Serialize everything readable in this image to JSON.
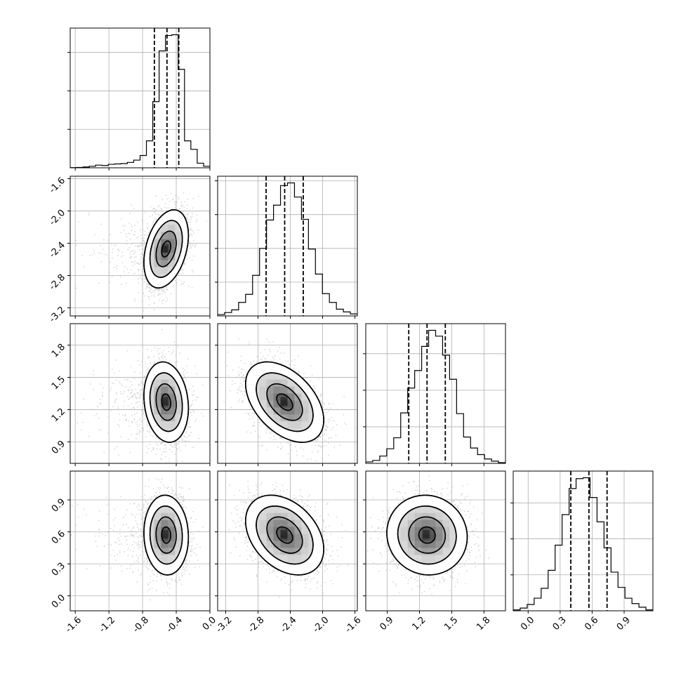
{
  "chart_data": {
    "type": "corner",
    "grid": true,
    "params": [
      {
        "range": [
          -1.66,
          0.0
        ],
        "ticks": [
          "-1.6",
          "-1.2",
          "-0.8",
          "-0.4",
          "0.0"
        ],
        "tick_values": [
          -1.6,
          -1.2,
          -0.8,
          -0.4,
          0.0
        ],
        "quantiles": [
          -0.66,
          -0.51,
          -0.37
        ],
        "hist": [
          0.2,
          0.5,
          1,
          2,
          3.5,
          3,
          4.5,
          5,
          5.5,
          7,
          10,
          16,
          35,
          86,
          152,
          172,
          173,
          128,
          35,
          24,
          6,
          2
        ],
        "mean": -0.52,
        "sd": 0.12
      },
      {
        "range": [
          -3.3,
          -1.57
        ],
        "ticks": [
          "-3.2",
          "-2.8",
          "-2.4",
          "-2.0",
          "-1.6"
        ],
        "tick_values": [
          -3.2,
          -2.8,
          -2.4,
          -2.0,
          -1.6
        ],
        "quantiles": [
          -2.7,
          -2.47,
          -2.24
        ],
        "hist": [
          2,
          5,
          9,
          20,
          32,
          60,
          100,
          142,
          164,
          193,
          197,
          176,
          143,
          99,
          62,
          33,
          20,
          10,
          6,
          3
        ],
        "mean": -2.47,
        "sd": 0.22
      },
      {
        "range": [
          0.7,
          2.0
        ],
        "ticks": [
          "0.9",
          "1.2",
          "1.5",
          "1.8"
        ],
        "tick_values": [
          0.9,
          1.2,
          1.5,
          1.8
        ],
        "quantiles": [
          1.1,
          1.27,
          1.44
        ],
        "hist": [
          2,
          4,
          10,
          20,
          35,
          69,
          103,
          127,
          160,
          182,
          174,
          148,
          115,
          68,
          36,
          21,
          12,
          6,
          3,
          1
        ],
        "mean": 1.27,
        "sd": 0.17
      },
      {
        "range": [
          -0.14,
          1.17
        ],
        "ticks": [
          "0.0",
          "0.3",
          "0.6",
          "0.9"
        ],
        "tick_values": [
          0.0,
          0.3,
          0.6,
          0.9
        ],
        "quantiles": [
          0.4,
          0.57,
          0.74
        ],
        "hist": [
          1,
          3,
          7,
          14,
          25,
          45,
          73,
          107,
          136,
          147,
          148,
          126,
          99,
          70,
          43,
          26,
          14,
          8,
          4,
          1
        ],
        "mean": 0.57,
        "sd": 0.17
      }
    ],
    "correlations": [
      [
        0,
        1,
        0.35
      ],
      [
        0,
        2,
        -0.15
      ],
      [
        1,
        2,
        -0.45
      ],
      [
        0,
        3,
        -0.05
      ],
      [
        1,
        3,
        -0.35
      ],
      [
        2,
        3,
        -0.05
      ]
    ]
  }
}
